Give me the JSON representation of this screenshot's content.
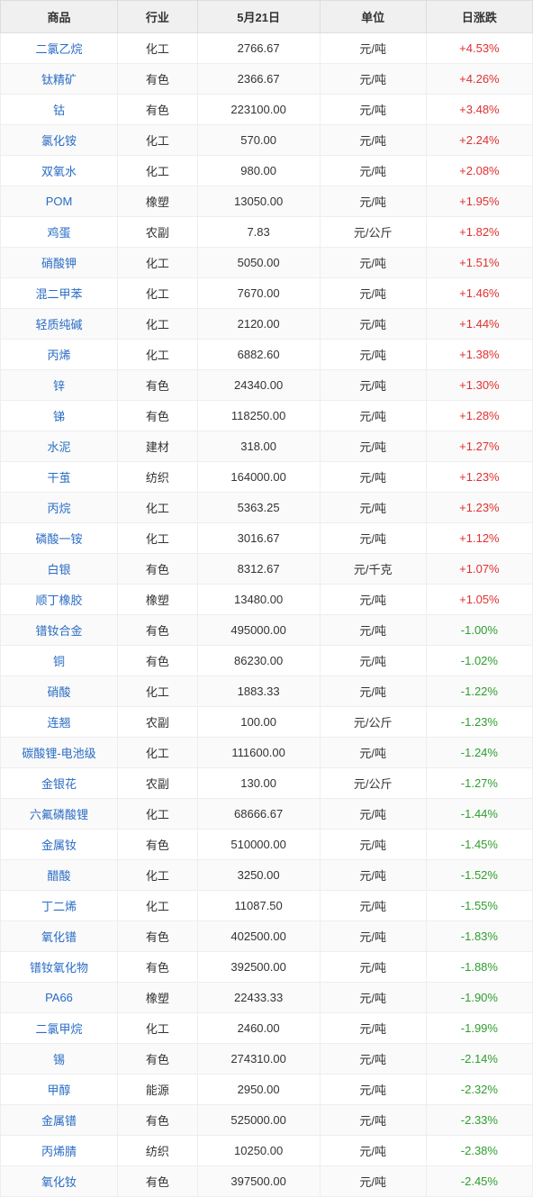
{
  "table": {
    "header_bg": "#f0f0f0",
    "border_color": "#dddddd",
    "row_even_bg": "#fafafa",
    "row_odd_bg": "#ffffff",
    "link_color": "#2a6cc4",
    "pos_color": "#e03030",
    "neg_color": "#2e9e2e",
    "columns": [
      "商品",
      "行业",
      "5月21日",
      "单位",
      "日涨跌"
    ],
    "column_widths_pct": [
      22,
      15,
      23,
      20,
      20
    ],
    "rows": [
      {
        "product": "二氯乙烷",
        "industry": "化工",
        "price": "2766.67",
        "unit": "元/吨",
        "change": "+4.53%",
        "dir": "pos"
      },
      {
        "product": "钛精矿",
        "industry": "有色",
        "price": "2366.67",
        "unit": "元/吨",
        "change": "+4.26%",
        "dir": "pos"
      },
      {
        "product": "钴",
        "industry": "有色",
        "price": "223100.00",
        "unit": "元/吨",
        "change": "+3.48%",
        "dir": "pos"
      },
      {
        "product": "氯化铵",
        "industry": "化工",
        "price": "570.00",
        "unit": "元/吨",
        "change": "+2.24%",
        "dir": "pos"
      },
      {
        "product": "双氧水",
        "industry": "化工",
        "price": "980.00",
        "unit": "元/吨",
        "change": "+2.08%",
        "dir": "pos"
      },
      {
        "product": "POM",
        "industry": "橡塑",
        "price": "13050.00",
        "unit": "元/吨",
        "change": "+1.95%",
        "dir": "pos"
      },
      {
        "product": "鸡蛋",
        "industry": "农副",
        "price": "7.83",
        "unit": "元/公斤",
        "change": "+1.82%",
        "dir": "pos"
      },
      {
        "product": "硝酸钾",
        "industry": "化工",
        "price": "5050.00",
        "unit": "元/吨",
        "change": "+1.51%",
        "dir": "pos"
      },
      {
        "product": "混二甲苯",
        "industry": "化工",
        "price": "7670.00",
        "unit": "元/吨",
        "change": "+1.46%",
        "dir": "pos"
      },
      {
        "product": "轻质纯碱",
        "industry": "化工",
        "price": "2120.00",
        "unit": "元/吨",
        "change": "+1.44%",
        "dir": "pos"
      },
      {
        "product": "丙烯",
        "industry": "化工",
        "price": "6882.60",
        "unit": "元/吨",
        "change": "+1.38%",
        "dir": "pos"
      },
      {
        "product": "锌",
        "industry": "有色",
        "price": "24340.00",
        "unit": "元/吨",
        "change": "+1.30%",
        "dir": "pos"
      },
      {
        "product": "锑",
        "industry": "有色",
        "price": "118250.00",
        "unit": "元/吨",
        "change": "+1.28%",
        "dir": "pos"
      },
      {
        "product": "水泥",
        "industry": "建材",
        "price": "318.00",
        "unit": "元/吨",
        "change": "+1.27%",
        "dir": "pos"
      },
      {
        "product": "干茧",
        "industry": "纺织",
        "price": "164000.00",
        "unit": "元/吨",
        "change": "+1.23%",
        "dir": "pos"
      },
      {
        "product": "丙烷",
        "industry": "化工",
        "price": "5363.25",
        "unit": "元/吨",
        "change": "+1.23%",
        "dir": "pos"
      },
      {
        "product": "磷酸一铵",
        "industry": "化工",
        "price": "3016.67",
        "unit": "元/吨",
        "change": "+1.12%",
        "dir": "pos"
      },
      {
        "product": "白银",
        "industry": "有色",
        "price": "8312.67",
        "unit": "元/千克",
        "change": "+1.07%",
        "dir": "pos"
      },
      {
        "product": "顺丁橡胶",
        "industry": "橡塑",
        "price": "13480.00",
        "unit": "元/吨",
        "change": "+1.05%",
        "dir": "pos"
      },
      {
        "product": "镨钕合金",
        "industry": "有色",
        "price": "495000.00",
        "unit": "元/吨",
        "change": "-1.00%",
        "dir": "neg"
      },
      {
        "product": "铜",
        "industry": "有色",
        "price": "86230.00",
        "unit": "元/吨",
        "change": "-1.02%",
        "dir": "neg"
      },
      {
        "product": "硝酸",
        "industry": "化工",
        "price": "1883.33",
        "unit": "元/吨",
        "change": "-1.22%",
        "dir": "neg"
      },
      {
        "product": "连翘",
        "industry": "农副",
        "price": "100.00",
        "unit": "元/公斤",
        "change": "-1.23%",
        "dir": "neg"
      },
      {
        "product": "碳酸锂-电池级",
        "industry": "化工",
        "price": "111600.00",
        "unit": "元/吨",
        "change": "-1.24%",
        "dir": "neg"
      },
      {
        "product": "金银花",
        "industry": "农副",
        "price": "130.00",
        "unit": "元/公斤",
        "change": "-1.27%",
        "dir": "neg"
      },
      {
        "product": "六氟磷酸锂",
        "industry": "化工",
        "price": "68666.67",
        "unit": "元/吨",
        "change": "-1.44%",
        "dir": "neg"
      },
      {
        "product": "金属钕",
        "industry": "有色",
        "price": "510000.00",
        "unit": "元/吨",
        "change": "-1.45%",
        "dir": "neg"
      },
      {
        "product": "醋酸",
        "industry": "化工",
        "price": "3250.00",
        "unit": "元/吨",
        "change": "-1.52%",
        "dir": "neg"
      },
      {
        "product": "丁二烯",
        "industry": "化工",
        "price": "11087.50",
        "unit": "元/吨",
        "change": "-1.55%",
        "dir": "neg"
      },
      {
        "product": "氧化镨",
        "industry": "有色",
        "price": "402500.00",
        "unit": "元/吨",
        "change": "-1.83%",
        "dir": "neg"
      },
      {
        "product": "镨钕氧化物",
        "industry": "有色",
        "price": "392500.00",
        "unit": "元/吨",
        "change": "-1.88%",
        "dir": "neg"
      },
      {
        "product": "PA66",
        "industry": "橡塑",
        "price": "22433.33",
        "unit": "元/吨",
        "change": "-1.90%",
        "dir": "neg"
      },
      {
        "product": "二氯甲烷",
        "industry": "化工",
        "price": "2460.00",
        "unit": "元/吨",
        "change": "-1.99%",
        "dir": "neg"
      },
      {
        "product": "锡",
        "industry": "有色",
        "price": "274310.00",
        "unit": "元/吨",
        "change": "-2.14%",
        "dir": "neg"
      },
      {
        "product": "甲醇",
        "industry": "能源",
        "price": "2950.00",
        "unit": "元/吨",
        "change": "-2.32%",
        "dir": "neg"
      },
      {
        "product": "金属镨",
        "industry": "有色",
        "price": "525000.00",
        "unit": "元/吨",
        "change": "-2.33%",
        "dir": "neg"
      },
      {
        "product": "丙烯腈",
        "industry": "纺织",
        "price": "10250.00",
        "unit": "元/吨",
        "change": "-2.38%",
        "dir": "neg"
      },
      {
        "product": "氧化钕",
        "industry": "有色",
        "price": "397500.00",
        "unit": "元/吨",
        "change": "-2.45%",
        "dir": "neg"
      }
    ]
  }
}
